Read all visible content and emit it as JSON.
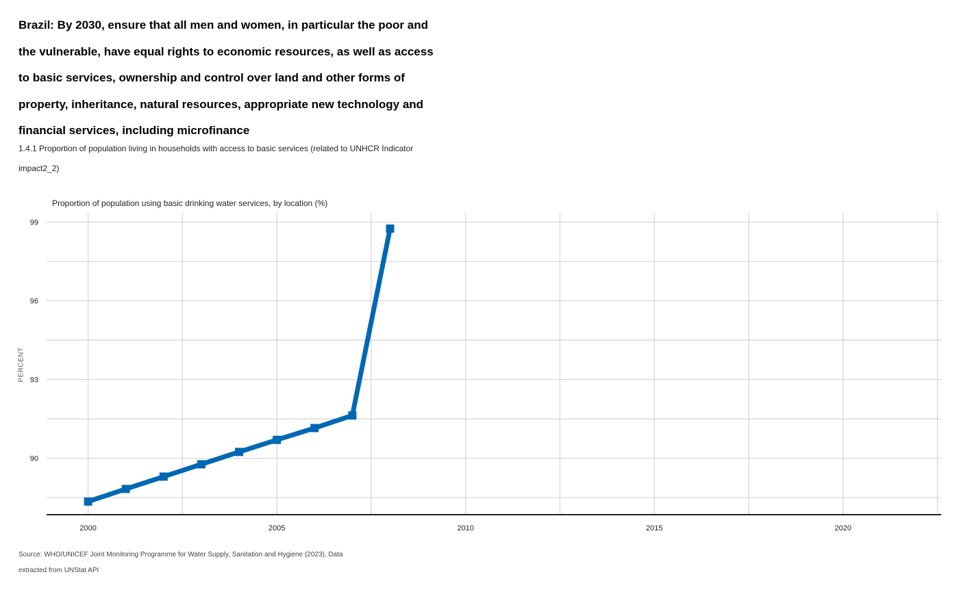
{
  "header": {
    "title": "Brazil: By 2030, ensure that all men and women, in particular the poor and the vulnerable, have equal rights to economic resources, as well as access to basic services, ownership and control over land and other forms of property, inheritance, natural resources, appropriate new technology and financial services, including microfinance",
    "subtitle": "1.4.1 Proportion of population living in households with access to basic services (related to UNHCR Indicator impact2_2)"
  },
  "footer": {
    "source": "Source: WHO/UNICEF Joint Monitoring Programme for Water Supply, Sanitation and Hygiene (2023), Data extracted from UNStat API"
  },
  "chart_data": {
    "type": "line",
    "title": "Proportion of population using basic drinking water services, by location (%)",
    "xlabel": "",
    "ylabel": "PERCENT",
    "x_ticks": [
      2000,
      2005,
      2010,
      2015,
      2020
    ],
    "y_ticks": [
      90,
      93,
      96,
      99
    ],
    "xlim": [
      1998.9,
      2022.6
    ],
    "ylim": [
      87.85,
      99.35
    ],
    "grid": true,
    "series_color": "#0068b3",
    "series": [
      {
        "x": [
          2000,
          2001,
          2002,
          2003,
          2004,
          2005,
          2006,
          2007,
          2008
        ],
        "values": [
          88.35,
          88.83,
          89.3,
          89.77,
          90.24,
          90.7,
          91.15,
          91.63,
          98.75
        ]
      }
    ]
  }
}
